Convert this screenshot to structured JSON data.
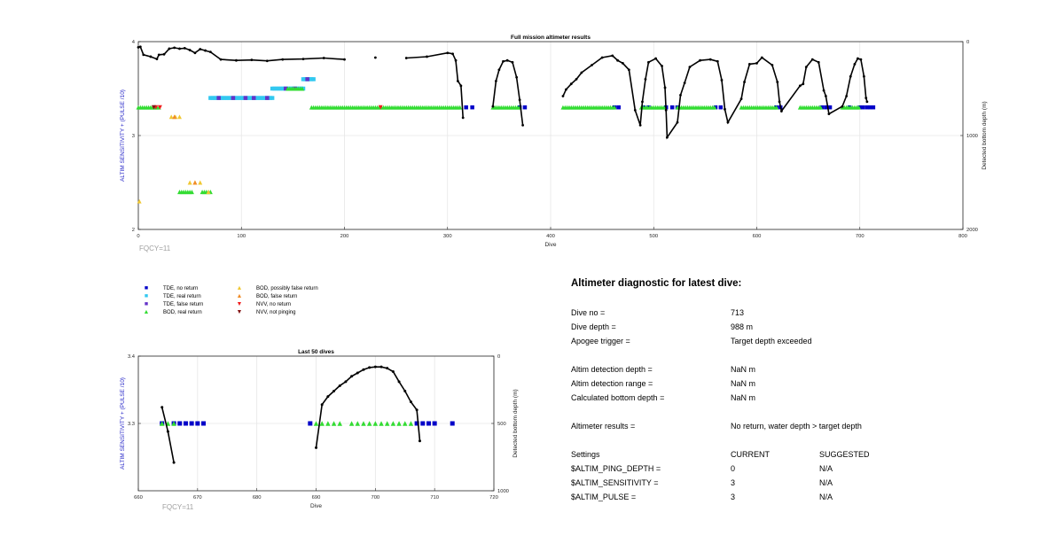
{
  "chart_data": [
    {
      "type": "scatter",
      "title": "Full mission altimeter results",
      "xlabel": "Dive",
      "ylabel": "ALTIM SENSITIVITY + (PULSE /10)",
      "y2label": "Detected bottom depth (m)",
      "xlim": [
        0,
        800
      ],
      "ylim": [
        2,
        4
      ],
      "y2lim": [
        2000,
        0
      ],
      "xticks": [
        0,
        100,
        200,
        300,
        400,
        500,
        600,
        700,
        800
      ],
      "yticks": [
        2,
        3,
        4
      ],
      "y2ticks": [
        0,
        1000,
        2000
      ],
      "grid": true,
      "footnote": "FQCY=11",
      "series": [
        {
          "name": "TDE, no return",
          "color": "#0000c8",
          "marker": "square",
          "points": [
            [
              318,
              3.3
            ],
            [
              324,
              3.3
            ],
            [
              370,
              3.3
            ],
            [
              375,
              3.3
            ],
            [
              462,
              3.3
            ],
            [
              466,
              3.3
            ],
            [
              490,
              3.3
            ],
            [
              495,
              3.3
            ],
            [
              512,
              3.3
            ],
            [
              518,
              3.3
            ],
            [
              523,
              3.3
            ],
            [
              560,
              3.3
            ],
            [
              565,
              3.3
            ],
            [
              619,
              3.3
            ],
            [
              623,
              3.3
            ],
            [
              663,
              3.3
            ],
            [
              667,
              3.3
            ],
            [
              671,
              3.3
            ],
            [
              690,
              3.3
            ],
            [
              700,
              3.3
            ],
            [
              703,
              3.3
            ],
            [
              707,
              3.3
            ],
            [
              710,
              3.3
            ],
            [
              713,
              3.3
            ]
          ]
        },
        {
          "name": "TDE, real return",
          "color": "#32c8f0",
          "marker": "square",
          "segments": [
            [
              70,
              130,
              3.4
            ],
            [
              130,
              160,
              3.5
            ],
            [
              160,
              170,
              3.6
            ]
          ]
        },
        {
          "name": "TDE, false return",
          "color": "#6432c8",
          "marker": "square",
          "points": [
            [
              78,
              3.4
            ],
            [
              92,
              3.4
            ],
            [
              104,
              3.4
            ],
            [
              112,
              3.4
            ],
            [
              125,
              3.4
            ],
            [
              143,
              3.5
            ],
            [
              152,
              3.5
            ],
            [
              164,
              3.6
            ]
          ]
        },
        {
          "name": "BOD, real return",
          "color": "#32dc32",
          "marker": "triangle",
          "segments": [
            [
              0,
              20,
              3.3
            ],
            [
              168,
              312,
              3.3
            ],
            [
              344,
              370,
              3.3
            ],
            [
              412,
              462,
              3.3
            ],
            [
              488,
              510,
              3.3
            ],
            [
              523,
              560,
              3.3
            ],
            [
              585,
              619,
              3.3
            ],
            [
              642,
              663,
              3.3
            ],
            [
              683,
              700,
              3.3
            ],
            [
              40,
              52,
              2.4
            ],
            [
              62,
              70,
              2.4
            ],
            [
              145,
              160,
              3.5
            ]
          ]
        },
        {
          "name": "BOD, possibly false return",
          "color": "#f0c832",
          "marker": "triangle",
          "points": [
            [
              1,
              2.3
            ],
            [
              32,
              3.2
            ],
            [
              36,
              3.2
            ],
            [
              40,
              3.2
            ],
            [
              50,
              2.5
            ],
            [
              55,
              2.5
            ],
            [
              60,
              2.5
            ],
            [
              68,
              2.4
            ]
          ]
        },
        {
          "name": "BOD, false return",
          "color": "#f08c28",
          "marker": "triangle",
          "points": [
            [
              35,
              3.2
            ],
            [
              55,
              2.5
            ]
          ]
        },
        {
          "name": "NVV, no return",
          "color": "#f01e1e",
          "marker": "triangle-down",
          "points": [
            [
              17,
              3.3
            ],
            [
              21,
              3.3
            ],
            [
              235,
              3.3
            ]
          ]
        },
        {
          "name": "NVV, not pinging",
          "color": "#821414",
          "marker": "triangle-down",
          "points": [
            [
              15,
              3.3
            ]
          ]
        },
        {
          "name": "Detected bottom depth",
          "color": "#000000",
          "marker": "dot",
          "axis": "y2",
          "points": [
            [
              0,
              60
            ],
            [
              2,
              55
            ],
            [
              5,
              140
            ],
            [
              12,
              160
            ],
            [
              18,
              185
            ],
            [
              20,
              140
            ],
            [
              25,
              135
            ],
            [
              30,
              75
            ],
            [
              35,
              65
            ],
            [
              40,
              75
            ],
            [
              45,
              70
            ],
            [
              50,
              90
            ],
            [
              55,
              120
            ],
            [
              60,
              80
            ],
            [
              65,
              95
            ],
            [
              70,
              110
            ],
            [
              80,
              190
            ],
            [
              95,
              200
            ],
            [
              110,
              195
            ],
            [
              125,
              205
            ],
            [
              140,
              190
            ],
            [
              160,
              185
            ],
            [
              180,
              175
            ],
            [
              200,
              190
            ],
            [
              230,
              170
            ],
            [
              260,
              175
            ],
            [
              280,
              160
            ],
            [
              300,
              120
            ],
            [
              305,
              130
            ],
            [
              308,
              200
            ],
            [
              310,
              420
            ],
            [
              313,
              470
            ],
            [
              315,
              810
            ],
            [
              344,
              690
            ],
            [
              347,
              420
            ],
            [
              350,
              300
            ],
            [
              354,
              210
            ],
            [
              358,
              200
            ],
            [
              363,
              220
            ],
            [
              367,
              380
            ],
            [
              370,
              620
            ],
            [
              373,
              890
            ],
            [
              412,
              580
            ],
            [
              415,
              510
            ],
            [
              420,
              450
            ],
            [
              425,
              400
            ],
            [
              430,
              330
            ],
            [
              440,
              250
            ],
            [
              450,
              170
            ],
            [
              460,
              150
            ],
            [
              465,
              200
            ],
            [
              470,
              230
            ],
            [
              476,
              300
            ],
            [
              482,
              730
            ],
            [
              487,
              890
            ],
            [
              489,
              640
            ],
            [
              492,
              400
            ],
            [
              495,
              220
            ],
            [
              502,
              180
            ],
            [
              508,
              260
            ],
            [
              511,
              490
            ],
            [
              512,
              730
            ],
            [
              513,
              1020
            ],
            [
              523,
              860
            ],
            [
              526,
              570
            ],
            [
              530,
              440
            ],
            [
              535,
              270
            ],
            [
              545,
              200
            ],
            [
              555,
              190
            ],
            [
              562,
              210
            ],
            [
              566,
              410
            ],
            [
              569,
              720
            ],
            [
              572,
              860
            ],
            [
              585,
              610
            ],
            [
              588,
              430
            ],
            [
              593,
              240
            ],
            [
              600,
              230
            ],
            [
              605,
              170
            ],
            [
              615,
              250
            ],
            [
              620,
              430
            ],
            [
              622,
              640
            ],
            [
              624,
              740
            ],
            [
              642,
              470
            ],
            [
              645,
              450
            ],
            [
              648,
              270
            ],
            [
              654,
              190
            ],
            [
              660,
              220
            ],
            [
              665,
              520
            ],
            [
              667,
              580
            ],
            [
              670,
              770
            ],
            [
              683,
              690
            ],
            [
              687,
              580
            ],
            [
              691,
              370
            ],
            [
              695,
              240
            ],
            [
              698,
              180
            ],
            [
              701,
              190
            ],
            [
              704,
              370
            ],
            [
              706,
              600
            ],
            [
              707,
              640
            ]
          ]
        }
      ]
    },
    {
      "type": "scatter",
      "title": "Last 50 dives",
      "xlabel": "Dive",
      "ylabel": "ALTIM SENSITIVITY + (PULSE /10)",
      "y2label": "Detected bottom depth (m)",
      "xlim": [
        660,
        720
      ],
      "ylim": [
        3.2,
        3.4
      ],
      "y2lim": [
        1000,
        0
      ],
      "xticks": [
        660,
        670,
        680,
        690,
        700,
        710,
        720
      ],
      "yticks": [
        3.3,
        3.4
      ],
      "y2ticks": [
        0,
        500,
        1000
      ],
      "grid": true,
      "footnote": "FQCY=11",
      "series": [
        {
          "name": "TDE, no return",
          "color": "#0000c8",
          "marker": "square",
          "points": [
            [
              664,
              3.3
            ],
            [
              666,
              3.3
            ],
            [
              667,
              3.3
            ],
            [
              668,
              3.3
            ],
            [
              669,
              3.3
            ],
            [
              670,
              3.3
            ],
            [
              671,
              3.3
            ],
            [
              689,
              3.3
            ],
            [
              707,
              3.3
            ],
            [
              708,
              3.3
            ],
            [
              709,
              3.3
            ],
            [
              710,
              3.3
            ],
            [
              713,
              3.3
            ]
          ]
        },
        {
          "name": "BOD, real return",
          "color": "#32dc32",
          "marker": "triangle",
          "points": [
            [
              664,
              3.3
            ],
            [
              665,
              3.3
            ],
            [
              666,
              3.3
            ],
            [
              690,
              3.3
            ],
            [
              691,
              3.3
            ],
            [
              692,
              3.3
            ],
            [
              693,
              3.3
            ],
            [
              694,
              3.3
            ],
            [
              696,
              3.3
            ],
            [
              697,
              3.3
            ],
            [
              698,
              3.3
            ],
            [
              699,
              3.3
            ],
            [
              700,
              3.3
            ],
            [
              701,
              3.3
            ],
            [
              702,
              3.3
            ],
            [
              703,
              3.3
            ],
            [
              704,
              3.3
            ],
            [
              705,
              3.3
            ],
            [
              706,
              3.3
            ]
          ]
        },
        {
          "name": "Detected bottom depth",
          "color": "#000000",
          "marker": "dot",
          "axis": "y2",
          "points": [
            [
              664,
              380
            ],
            [
              665,
              560
            ],
            [
              666,
              790
            ],
            [
              690,
              680
            ],
            [
              691,
              360
            ],
            [
              692,
              300
            ],
            [
              693,
              260
            ],
            [
              694,
              220
            ],
            [
              695,
              190
            ],
            [
              696,
              150
            ],
            [
              697,
              125
            ],
            [
              698,
              100
            ],
            [
              699,
              85
            ],
            [
              700,
              80
            ],
            [
              701,
              80
            ],
            [
              702,
              90
            ],
            [
              703,
              115
            ],
            [
              704,
              190
            ],
            [
              705,
              260
            ],
            [
              706,
              340
            ],
            [
              707,
              400
            ],
            [
              707.5,
              630
            ]
          ]
        }
      ]
    }
  ],
  "legend": [
    {
      "label": "TDE, no return",
      "symbol": "■",
      "color": "#0000c8"
    },
    {
      "label": "BOD, possibly false return",
      "symbol": "▲",
      "color": "#f0c832"
    },
    {
      "label": "TDE, real return",
      "symbol": "■",
      "color": "#32c8f0"
    },
    {
      "label": "BOD, false return",
      "symbol": "▲",
      "color": "#f08c28"
    },
    {
      "label": "TDE, false return",
      "symbol": "■",
      "color": "#6432c8"
    },
    {
      "label": "NVV, no return",
      "symbol": "▼",
      "color": "#f01e1e"
    },
    {
      "label": "BOD, real return",
      "symbol": "▲",
      "color": "#32dc32"
    },
    {
      "label": "NVV, not pinging",
      "symbol": "▼",
      "color": "#821414"
    }
  ],
  "diagnostic": {
    "title": "Altimeter diagnostic for latest dive:",
    "rows": [
      {
        "label": "Dive no =",
        "value": "713",
        "suggested": ""
      },
      {
        "label": "Dive depth =",
        "value": "988 m",
        "suggested": ""
      },
      {
        "label": "Apogee trigger =",
        "value": "Target depth exceeded",
        "suggested": ""
      },
      {
        "label": "Altim detection depth =",
        "value": "NaN m",
        "suggested": ""
      },
      {
        "label": "Altim detection range =",
        "value": "NaN m",
        "suggested": ""
      },
      {
        "label": "Calculated bottom depth =",
        "value": "NaN m",
        "suggested": ""
      },
      {
        "label": "Altimeter results =",
        "value": "No return, water depth > target depth",
        "suggested": ""
      },
      {
        "label": "Settings",
        "value": "CURRENT",
        "suggested": "SUGGESTED"
      },
      {
        "label": "$ALTIM_PING_DEPTH =",
        "value": "0",
        "suggested": "N/A"
      },
      {
        "label": "$ALTIM_SENSITIVITY =",
        "value": "3",
        "suggested": "N/A"
      },
      {
        "label": "$ALTIM_PULSE =",
        "value": "3",
        "suggested": "N/A"
      }
    ]
  },
  "colors": {
    "axis_label_blue": "#2828c8",
    "grid": "#e6e6e6",
    "footnote_gray": "#a0a0a0"
  }
}
